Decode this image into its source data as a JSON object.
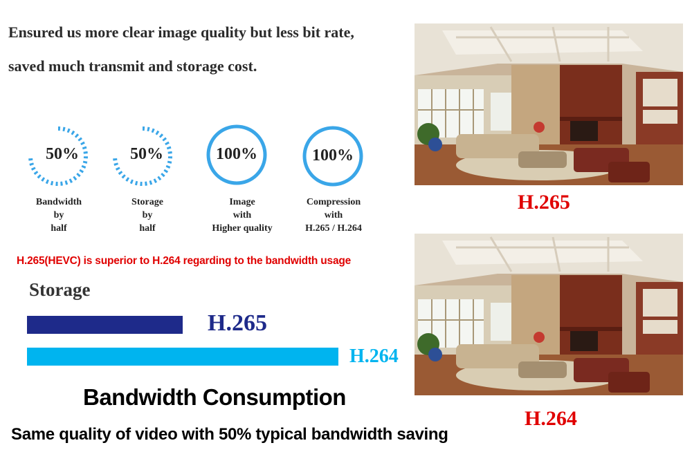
{
  "headline": {
    "line1": "Ensured us more clear image quality but less bit rate,",
    "line2": "saved much transmit and storage cost."
  },
  "stats": [
    {
      "value": "50%",
      "caption": "Bandwidth\nby\nhalf",
      "ring_style": "dotted",
      "level": 0.75
    },
    {
      "value": "50%",
      "caption": "Storage\nby\nhalf",
      "ring_style": "dotted",
      "level": 0.75
    },
    {
      "value": "100%",
      "caption": "Image\nwith\nHigher quality",
      "ring_style": "solid",
      "level": 1.0
    },
    {
      "value": "100%",
      "caption": "Compression\nwith\nH.265 / H.264",
      "ring_style": "solid",
      "level": 1.0
    }
  ],
  "note": "H.265(HEVC) is superior to H.264 regarding to the bandwidth usage",
  "storage": {
    "title": "Storage",
    "bars": [
      {
        "label": "H.265",
        "value": 0.5,
        "color": "#1e2a8a"
      },
      {
        "label": "H.264",
        "value": 1.0,
        "color": "#00b4ef"
      }
    ]
  },
  "bandwidth_title": "Bandwidth Consumption",
  "bandwidth_subtitle": "Same quality of video with 50% typical bandwidth saving",
  "photos": [
    {
      "caption": "H.265"
    },
    {
      "caption": "H.264"
    }
  ],
  "colors": {
    "ring": "#3aa6e8",
    "accent_red": "#e00000",
    "h265_bar": "#1e2a8a",
    "h264_bar": "#00b4ef"
  }
}
